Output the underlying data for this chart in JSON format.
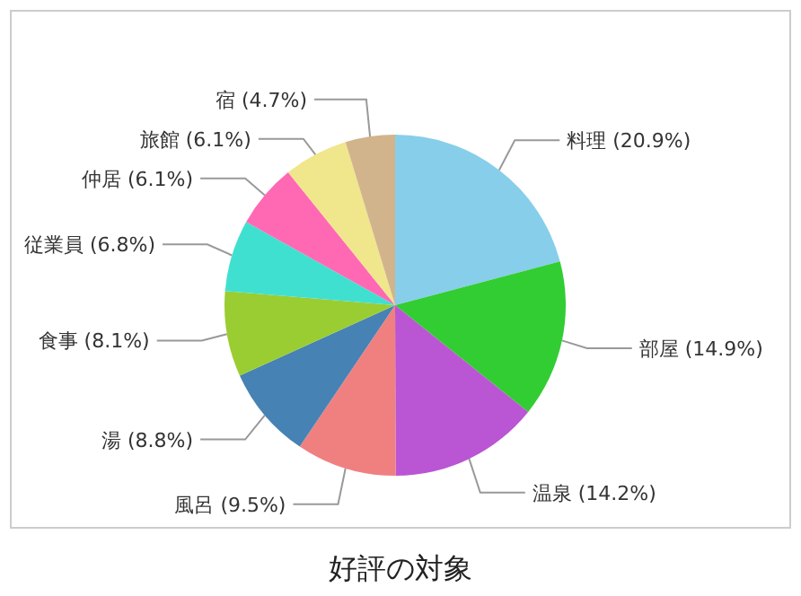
{
  "chart_data": {
    "type": "pie",
    "title": "好評の対象",
    "categories": [
      "料理",
      "部屋",
      "温泉",
      "風呂",
      "湯",
      "食事",
      "従業員",
      "仲居",
      "旅館",
      "宿"
    ],
    "values": [
      20.9,
      14.9,
      14.2,
      9.5,
      8.8,
      8.1,
      6.8,
      6.1,
      6.1,
      4.7
    ],
    "value_labels": [
      "(20.9%)",
      "(14.9%)",
      "(14.2%)",
      "(9.5%)",
      "(8.8%)",
      "(8.1%)",
      "(6.8%)",
      "(6.1%)",
      "(6.1%)",
      "(4.7%)"
    ],
    "colors": [
      "#87ceeb",
      "#32cd32",
      "#ba55d3",
      "#f08080",
      "#4682b4",
      "#9acd32",
      "#40e0d0",
      "#ff69b4",
      "#f0e68c",
      "#d2b48c"
    ]
  }
}
